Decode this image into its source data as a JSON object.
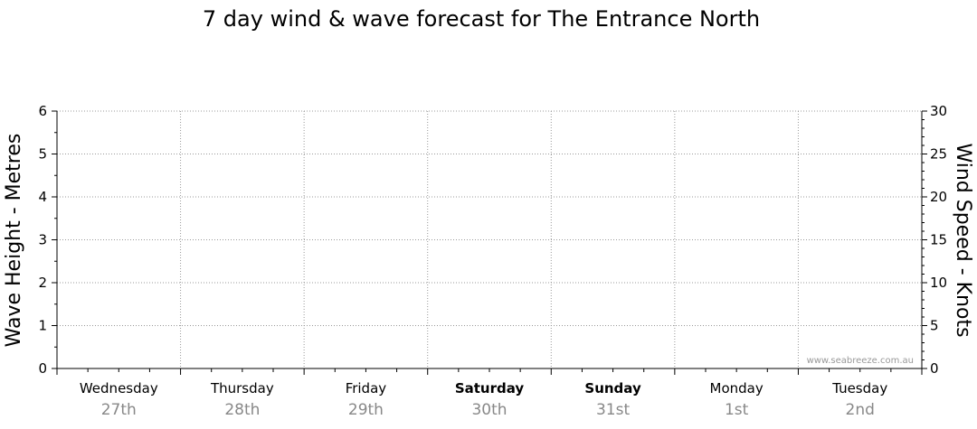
{
  "chart_data": {
    "type": "line",
    "title": "7 day wind & wave forecast for The Entrance North",
    "ylabel_left": "Wave Height - Metres",
    "ylabel_right": "Wind Speed - Knots",
    "ylim_left": [
      0,
      6
    ],
    "ylim_right": [
      0,
      30
    ],
    "yticks_left": [
      "0",
      "1",
      "2",
      "3",
      "4",
      "5",
      "6"
    ],
    "yticks_right": [
      "0",
      "5",
      "10",
      "15",
      "20",
      "25",
      "30"
    ],
    "grid": true,
    "days": [
      {
        "name": "Wednesday",
        "date": "27th",
        "bold": false
      },
      {
        "name": "Thursday",
        "date": "28th",
        "bold": false
      },
      {
        "name": "Friday",
        "date": "29th",
        "bold": false
      },
      {
        "name": "Saturday",
        "date": "30th",
        "bold": true
      },
      {
        "name": "Sunday",
        "date": "31st",
        "bold": true
      },
      {
        "name": "Monday",
        "date": "1st",
        "bold": false
      },
      {
        "name": "Tuesday",
        "date": "2nd",
        "bold": false
      }
    ],
    "series": [],
    "watermark": "www.seabreeze.com.au"
  }
}
